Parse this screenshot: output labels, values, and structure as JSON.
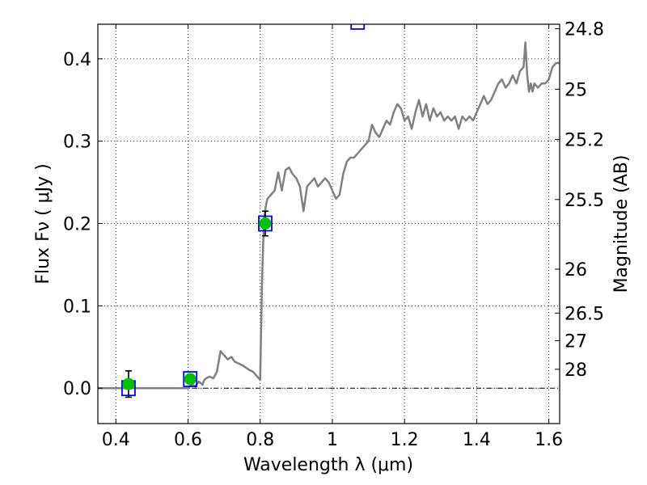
{
  "chart_data": {
    "type": "line",
    "xlabel": "Wavelength  λ (μm)",
    "ylabel": "Flux  Fν  ( μJy )",
    "ylabel_right": "Magnitude (AB)",
    "xlim": [
      0.35,
      1.63
    ],
    "ylim": [
      -0.043,
      0.442
    ],
    "grid": true,
    "x_ticks": [
      {
        "value": 0.4,
        "label": "0.4"
      },
      {
        "value": 0.6,
        "label": "0.6"
      },
      {
        "value": 0.8,
        "label": "0.8"
      },
      {
        "value": 1.0,
        "label": "1"
      },
      {
        "value": 1.2,
        "label": "1.2"
      },
      {
        "value": 1.4,
        "label": "1.4"
      },
      {
        "value": 1.6,
        "label": "1.6"
      }
    ],
    "y_ticks": [
      {
        "value": 0.0,
        "label": "0.0"
      },
      {
        "value": 0.1,
        "label": "0.1"
      },
      {
        "value": 0.2,
        "label": "0.2"
      },
      {
        "value": 0.3,
        "label": "0.3"
      },
      {
        "value": 0.4,
        "label": "0.4"
      }
    ],
    "mag_ticks": [
      {
        "value": 24.8,
        "label": "24.8"
      },
      {
        "value": 25,
        "label": "25"
      },
      {
        "value": 25.2,
        "label": "25.2"
      },
      {
        "value": 25.5,
        "label": "25.5"
      },
      {
        "value": 26,
        "label": "26"
      },
      {
        "value": 26.5,
        "label": "26.5"
      },
      {
        "value": 27,
        "label": "27"
      },
      {
        "value": 28,
        "label": "28"
      }
    ],
    "series": [
      {
        "kind": "model-spectrum",
        "color": "#808080",
        "x": [
          0.35,
          0.6,
          0.61,
          0.62,
          0.63,
          0.64,
          0.645,
          0.65,
          0.66,
          0.67,
          0.68,
          0.69,
          0.7,
          0.71,
          0.72,
          0.73,
          0.74,
          0.75,
          0.76,
          0.77,
          0.78,
          0.79,
          0.8,
          0.805,
          0.81,
          0.815,
          0.82,
          0.83,
          0.84,
          0.85,
          0.86,
          0.87,
          0.88,
          0.89,
          0.9,
          0.91,
          0.92,
          0.93,
          0.94,
          0.95,
          0.96,
          0.97,
          0.98,
          0.99,
          1.0,
          1.01,
          1.02,
          1.03,
          1.04,
          1.05,
          1.06,
          1.07,
          1.08,
          1.09,
          1.1,
          1.11,
          1.12,
          1.13,
          1.14,
          1.15,
          1.16,
          1.17,
          1.18,
          1.19,
          1.2,
          1.21,
          1.22,
          1.23,
          1.24,
          1.25,
          1.26,
          1.27,
          1.28,
          1.29,
          1.3,
          1.31,
          1.32,
          1.33,
          1.34,
          1.35,
          1.36,
          1.37,
          1.38,
          1.39,
          1.4,
          1.41,
          1.42,
          1.43,
          1.44,
          1.45,
          1.46,
          1.47,
          1.48,
          1.49,
          1.5,
          1.51,
          1.52,
          1.53,
          1.535,
          1.54,
          1.545,
          1.55,
          1.555,
          1.56,
          1.57,
          1.58,
          1.59,
          1.6,
          1.61,
          1.62,
          1.63
        ],
        "y": [
          0.0,
          0.0,
          0.005,
          0.002,
          0.008,
          0.004,
          0.01,
          0.012,
          0.014,
          0.012,
          0.02,
          0.045,
          0.04,
          0.035,
          0.038,
          0.032,
          0.03,
          0.028,
          0.025,
          0.022,
          0.02,
          0.015,
          0.01,
          0.13,
          0.2,
          0.22,
          0.23,
          0.235,
          0.24,
          0.262,
          0.24,
          0.265,
          0.268,
          0.26,
          0.255,
          0.245,
          0.215,
          0.245,
          0.25,
          0.255,
          0.245,
          0.25,
          0.255,
          0.25,
          0.24,
          0.23,
          0.235,
          0.26,
          0.275,
          0.28,
          0.28,
          0.285,
          0.29,
          0.295,
          0.3,
          0.32,
          0.31,
          0.305,
          0.315,
          0.325,
          0.32,
          0.335,
          0.345,
          0.34,
          0.325,
          0.33,
          0.315,
          0.335,
          0.35,
          0.33,
          0.345,
          0.325,
          0.34,
          0.33,
          0.335,
          0.325,
          0.33,
          0.325,
          0.33,
          0.315,
          0.33,
          0.325,
          0.33,
          0.325,
          0.335,
          0.345,
          0.355,
          0.345,
          0.35,
          0.36,
          0.37,
          0.375,
          0.365,
          0.37,
          0.38,
          0.37,
          0.385,
          0.39,
          0.42,
          0.38,
          0.36,
          0.37,
          0.36,
          0.37,
          0.365,
          0.37,
          0.37,
          0.375,
          0.39,
          0.395,
          0.395
        ]
      },
      {
        "kind": "model-photometry",
        "marker": "square",
        "color": "#0000ff",
        "x": [
          0.435,
          0.606,
          0.814,
          1.07
        ],
        "y": [
          0.0,
          0.011,
          0.2,
          0.445
        ]
      },
      {
        "kind": "observed-photometry",
        "marker": "circle",
        "color": "#00c000",
        "x": [
          0.435,
          0.606,
          0.814
        ],
        "y": [
          0.005,
          0.011,
          0.2
        ],
        "yerr": [
          0.016,
          0.005,
          0.015
        ]
      }
    ],
    "zero_line": 0.0
  }
}
